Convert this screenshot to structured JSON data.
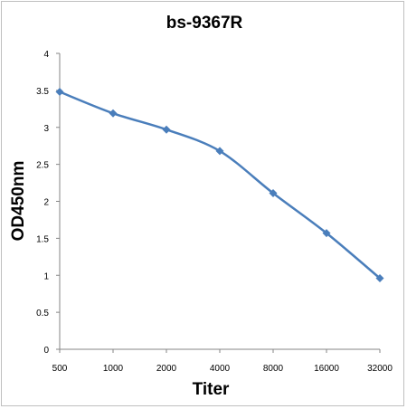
{
  "chart_data": {
    "type": "line",
    "title": "bs-9367R",
    "xlabel": "Titer",
    "ylabel": "OD450nm",
    "categories": [
      "500",
      "1000",
      "2000",
      "4000",
      "8000",
      "16000",
      "32000"
    ],
    "series": [
      {
        "values": [
          3.48,
          3.19,
          2.97,
          2.68,
          2.11,
          1.57,
          0.96
        ]
      }
    ],
    "ylim": [
      0,
      4
    ],
    "yticks": [
      "0",
      "0.5",
      "1",
      "1.5",
      "2",
      "2.5",
      "3",
      "3.5",
      "4"
    ],
    "grid": false,
    "line_color": "#4a7ebb",
    "marker": "diamond"
  }
}
